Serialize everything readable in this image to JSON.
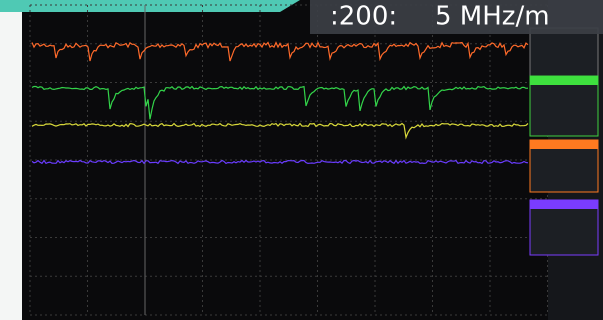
{
  "header": {
    "time_readout": ":200:",
    "frequency_readout": "5 MHz/m"
  }
}
